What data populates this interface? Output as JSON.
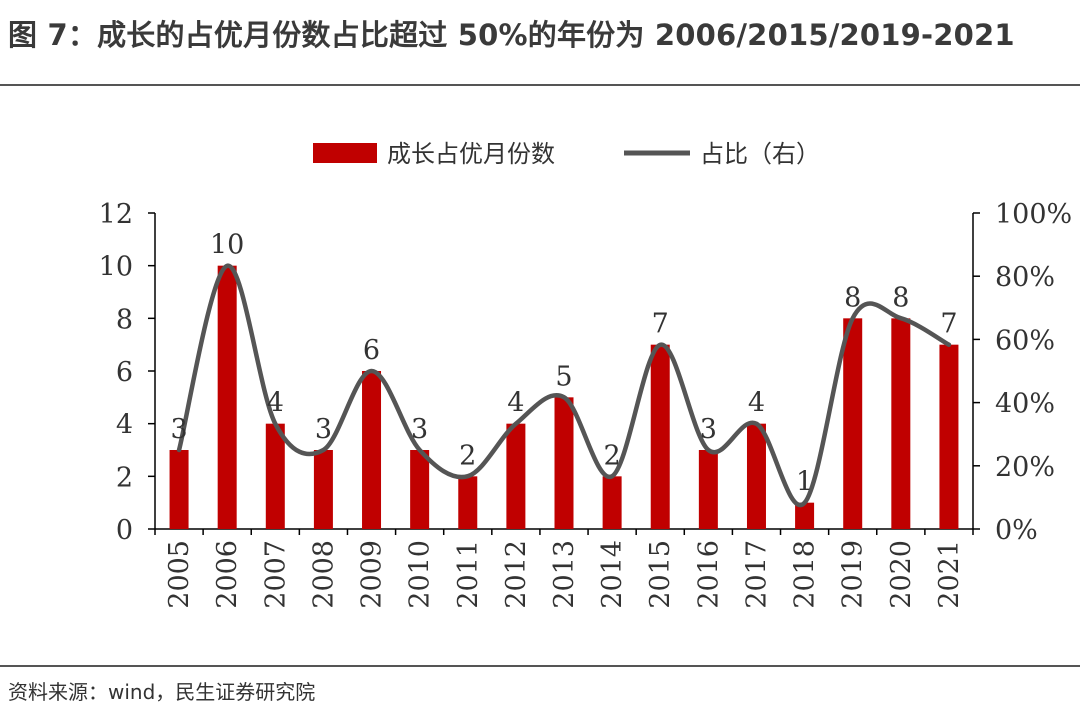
{
  "title": "图 7：成长的占优月份数占比超过 50%的年份为 2006/2015/2019-2021",
  "source": "资料来源：wind，民生证券研究院",
  "colors": {
    "bar": "#c00000",
    "line": "#555555",
    "axis": "#000000"
  },
  "chart_data": {
    "type": "bar",
    "categories": [
      "2005",
      "2006",
      "2007",
      "2008",
      "2009",
      "2010",
      "2011",
      "2012",
      "2013",
      "2014",
      "2015",
      "2016",
      "2017",
      "2018",
      "2019",
      "2020",
      "2021"
    ],
    "series": [
      {
        "name": "成长占优月份数",
        "type": "bar",
        "axis": "left",
        "values": [
          3,
          10,
          4,
          3,
          6,
          3,
          2,
          4,
          5,
          2,
          7,
          3,
          4,
          1,
          8,
          8,
          7
        ]
      },
      {
        "name": "占比（右）",
        "type": "line",
        "axis": "right",
        "values": [
          25,
          83.3,
          33.3,
          25,
          50,
          25,
          16.7,
          33.3,
          41.7,
          16.7,
          58.3,
          25,
          33.3,
          8.3,
          66.7,
          66.7,
          58.3
        ]
      }
    ],
    "data_labels": [
      "3",
      "10",
      "4",
      "3",
      "6",
      "3",
      "2",
      "4",
      "5",
      "2",
      "7",
      "3",
      "4",
      "1",
      "8",
      "8",
      "7"
    ],
    "left_axis": {
      "min": 0,
      "max": 12,
      "ticks": [
        "0",
        "2",
        "4",
        "6",
        "8",
        "10",
        "12"
      ]
    },
    "right_axis": {
      "min": 0,
      "max": 100,
      "ticks": [
        "0%",
        "20%",
        "40%",
        "60%",
        "80%",
        "100%"
      ]
    },
    "legend_position": "top-center",
    "grid": false
  }
}
